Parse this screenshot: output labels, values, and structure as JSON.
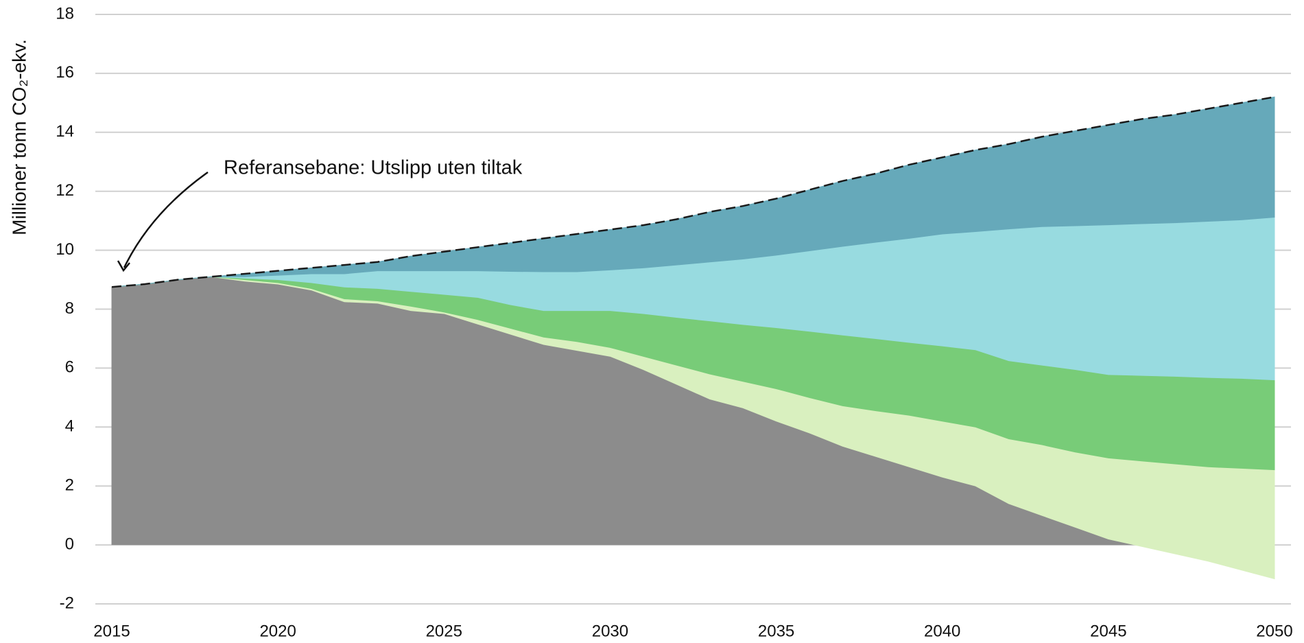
{
  "chart_data": {
    "type": "stacked_area",
    "ylabel": "Millioner tonn CO₂-ekv.",
    "annotation": "Referansebane: Utslipp uten tiltak",
    "x": [
      2015,
      2016,
      2017,
      2018,
      2019,
      2020,
      2021,
      2022,
      2023,
      2024,
      2025,
      2026,
      2027,
      2028,
      2029,
      2030,
      2031,
      2032,
      2033,
      2034,
      2035,
      2036,
      2037,
      2038,
      2039,
      2040,
      2041,
      2042,
      2043,
      2044,
      2045,
      2046,
      2047,
      2048,
      2049,
      2050
    ],
    "series": [
      {
        "color": "#8c8c8c",
        "values": [
          8.75,
          8.85,
          9.0,
          9.1,
          8.95,
          8.85,
          8.65,
          8.25,
          8.2,
          7.95,
          7.85,
          7.5,
          7.15,
          6.8,
          6.6,
          6.4,
          5.95,
          5.45,
          4.95,
          4.65,
          4.2,
          3.8,
          3.35,
          3.0,
          2.65,
          2.3,
          2.0,
          1.4,
          1.0,
          0.6,
          0.2,
          -0.05,
          -0.3,
          -0.55,
          -0.85,
          -1.15
        ]
      },
      {
        "color": "#d9f0bf",
        "values": [
          0,
          0,
          0,
          0,
          0.05,
          0.05,
          0.05,
          0.1,
          0.08,
          0.15,
          0.05,
          0.15,
          0.2,
          0.25,
          0.3,
          0.3,
          0.45,
          0.65,
          0.85,
          0.9,
          1.1,
          1.2,
          1.37,
          1.55,
          1.75,
          1.9,
          2.0,
          2.2,
          2.4,
          2.55,
          2.75,
          2.9,
          3.05,
          3.2,
          3.45,
          3.7
        ]
      },
      {
        "color": "#78cc78",
        "values": [
          0,
          0,
          0,
          0,
          0.05,
          0.1,
          0.2,
          0.4,
          0.42,
          0.5,
          0.6,
          0.75,
          0.8,
          0.9,
          1.05,
          1.25,
          1.45,
          1.62,
          1.8,
          1.93,
          2.07,
          2.25,
          2.4,
          2.45,
          2.47,
          2.55,
          2.62,
          2.65,
          2.7,
          2.8,
          2.83,
          2.9,
          2.97,
          3.03,
          3.05,
          3.05
        ]
      },
      {
        "color": "#98dbe0",
        "values": [
          0,
          0,
          0,
          0,
          0.05,
          0.15,
          0.3,
          0.45,
          0.6,
          0.7,
          0.8,
          0.9,
          1.13,
          1.32,
          1.32,
          1.38,
          1.55,
          1.78,
          2.0,
          2.22,
          2.46,
          2.73,
          3.01,
          3.27,
          3.53,
          3.8,
          4.01,
          4.47,
          4.7,
          4.88,
          5.08,
          5.15,
          5.21,
          5.3,
          5.38,
          5.52
        ]
      },
      {
        "color": "#66a9ba",
        "values": [
          0,
          0,
          0,
          0,
          0.1,
          0.15,
          0.2,
          0.3,
          0.3,
          0.5,
          0.65,
          0.8,
          0.97,
          1.13,
          1.28,
          1.37,
          1.45,
          1.55,
          1.7,
          1.8,
          1.92,
          2.07,
          2.22,
          2.33,
          2.5,
          2.6,
          2.77,
          2.88,
          3.05,
          3.22,
          3.39,
          3.55,
          3.67,
          3.82,
          3.97,
          4.08
        ]
      }
    ],
    "reference": {
      "color": "#1a1a1a",
      "values": [
        8.75,
        8.85,
        9.0,
        9.1,
        9.2,
        9.3,
        9.4,
        9.5,
        9.6,
        9.8,
        9.95,
        10.1,
        10.25,
        10.4,
        10.55,
        10.7,
        10.85,
        11.05,
        11.3,
        11.5,
        11.75,
        12.05,
        12.35,
        12.6,
        12.9,
        13.15,
        13.4,
        13.6,
        13.85,
        14.05,
        14.25,
        14.45,
        14.6,
        14.8,
        15.0,
        15.2
      ]
    },
    "xlim": [
      2015,
      2050
    ],
    "xticks": [
      2015,
      2020,
      2025,
      2030,
      2035,
      2040,
      2045,
      2050
    ],
    "ylim": [
      -2,
      18
    ],
    "yticks": [
      -2,
      0,
      2,
      4,
      6,
      8,
      10,
      12,
      14,
      16,
      18
    ],
    "grid": true
  }
}
